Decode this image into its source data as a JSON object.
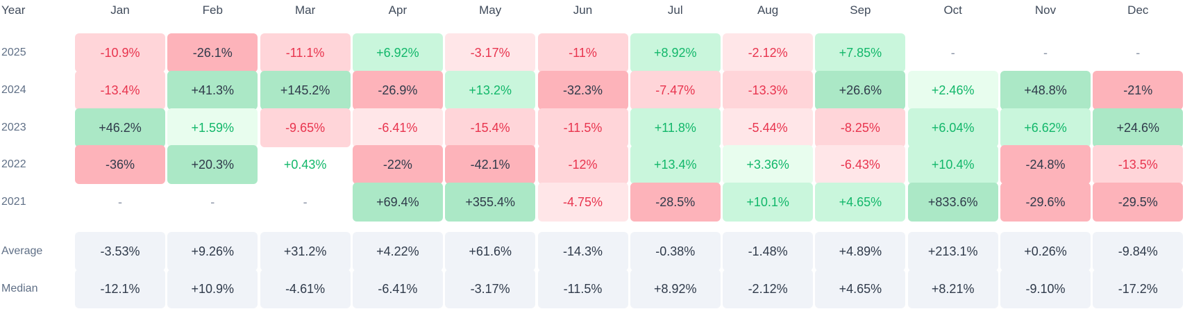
{
  "chart_data": {
    "type": "heatmap",
    "corner_label": "Year",
    "months": [
      "Jan",
      "Feb",
      "Mar",
      "Apr",
      "May",
      "Jun",
      "Jul",
      "Aug",
      "Sep",
      "Oct",
      "Nov",
      "Dec"
    ],
    "rows": [
      {
        "label": "2025",
        "values": [
          "-10.9%",
          "-26.1%",
          "-11.1%",
          "+6.92%",
          "-3.17%",
          "-11%",
          "+8.92%",
          "-2.12%",
          "+7.85%",
          "-",
          "-",
          "-"
        ]
      },
      {
        "label": "2024",
        "values": [
          "-13.4%",
          "+41.3%",
          "+145.2%",
          "-26.9%",
          "+13.2%",
          "-32.3%",
          "-7.47%",
          "-13.3%",
          "+26.6%",
          "+2.46%",
          "+48.8%",
          "-21%"
        ]
      },
      {
        "label": "2023",
        "values": [
          "+46.2%",
          "+1.59%",
          "-9.65%",
          "-6.41%",
          "-15.4%",
          "-11.5%",
          "+11.8%",
          "-5.44%",
          "-8.25%",
          "+6.04%",
          "+6.62%",
          "+24.6%"
        ]
      },
      {
        "label": "2022",
        "values": [
          "-36%",
          "+20.3%",
          "+0.43%",
          "-22%",
          "-42.1%",
          "-12%",
          "+13.4%",
          "+3.36%",
          "-6.43%",
          "+10.4%",
          "-24.8%",
          "-13.5%"
        ]
      },
      {
        "label": "2021",
        "values": [
          "-",
          "-",
          "-",
          "+69.4%",
          "+355.4%",
          "-4.75%",
          "-28.5%",
          "+10.1%",
          "+4.65%",
          "+833.6%",
          "-29.6%",
          "-29.5%"
        ]
      }
    ],
    "summary_rows": [
      {
        "label": "Average",
        "values": [
          "-3.53%",
          "+9.26%",
          "+31.2%",
          "+4.22%",
          "+61.6%",
          "-14.3%",
          "-0.38%",
          "-1.48%",
          "+4.89%",
          "+213.1%",
          "+0.26%",
          "-9.84%"
        ]
      },
      {
        "label": "Median",
        "values": [
          "-12.1%",
          "+10.9%",
          "-4.61%",
          "-6.41%",
          "-3.17%",
          "-11.5%",
          "+8.92%",
          "-2.12%",
          "+4.65%",
          "+8.21%",
          "-9.10%",
          "-17.2%"
        ]
      }
    ],
    "colors": {
      "neg_text": "#e8344e",
      "pos_text": "#12b76a",
      "strong_text": "#2f3a4a",
      "neg_1": "#ffe6e8",
      "neg_2": "#ffd5d9",
      "neg_3": "#fdb3ba",
      "pos_1": "#e8fdee",
      "pos_2": "#c9f6dc",
      "pos_3": "#abe8c6",
      "summary_bg": "#f0f3f8",
      "summary_text": "#2f3a4a",
      "empty_text": "#8a94a6"
    }
  }
}
